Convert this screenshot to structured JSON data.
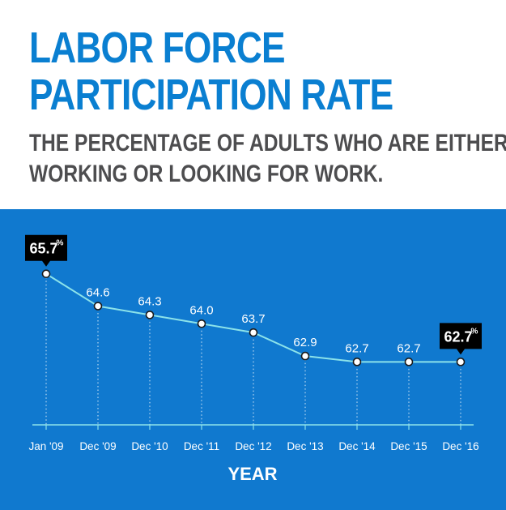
{
  "header": {
    "title_line1": "LABOR FORCE",
    "title_line2": "PARTICIPATION RATE",
    "subtitle_line1": "THE PERCENTAGE OF ADULTS WHO ARE EITHER",
    "subtitle_line2": "WORKING OR LOOKING FOR WORK."
  },
  "colors": {
    "title": "#0a7fd1",
    "subtitle": "#4d4d4f",
    "panel": "#1079cf",
    "line": "#8ce3ea",
    "text": "#ffffff",
    "callout": "#000000"
  },
  "chart_data": {
    "type": "line",
    "categories": [
      "Jan '09",
      "Dec '09",
      "Dec '10",
      "Dec '11",
      "Dec '12",
      "Dec '13",
      "Dec '14",
      "Dec '15",
      "Dec '16"
    ],
    "values": [
      65.7,
      64.6,
      64.3,
      64.0,
      63.7,
      62.9,
      62.7,
      62.7,
      62.7
    ],
    "value_labels": [
      "65.7%",
      "64.6",
      "64.3",
      "64.0",
      "63.7",
      "62.9",
      "62.7",
      "62.7",
      "62.7%"
    ],
    "highlighted": [
      0,
      8
    ],
    "xlabel": "YEAR",
    "ylabel": "",
    "title": "",
    "ylim": [
      60.5,
      66.3
    ],
    "grid": "vertical-dotted",
    "legend": "none"
  }
}
